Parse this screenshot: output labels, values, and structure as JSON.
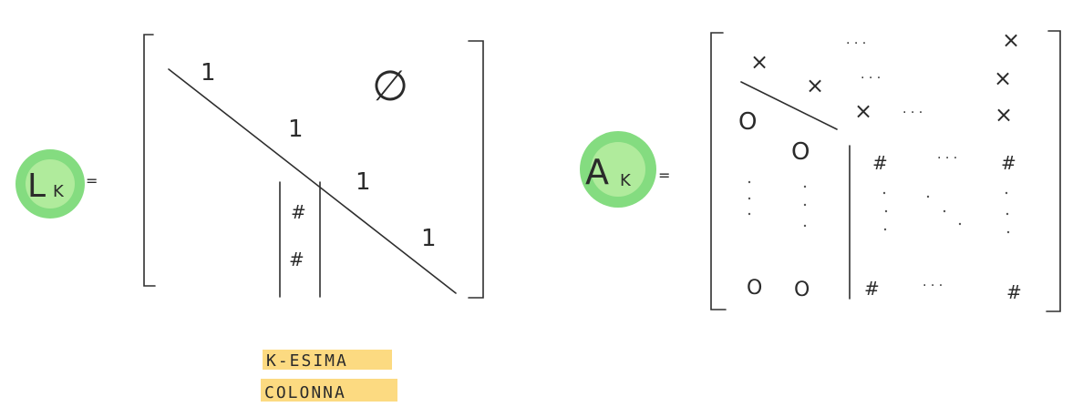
{
  "colors": {
    "highlight_green": "#6fd66a",
    "highlight_yellow": "#fbd46b",
    "pencil": "#2e2e2e"
  },
  "left_matrix": {
    "name_main": "L",
    "name_sub": "K",
    "equals": "=",
    "diag_ones": [
      "1",
      "1",
      "1",
      "1"
    ],
    "upper_zero": "∅",
    "column_entries": [
      "#",
      "#"
    ]
  },
  "column_note": {
    "line1": "K-ESIMA",
    "line2": "COLONNA"
  },
  "right_matrix": {
    "name_main": "A",
    "name_sub": "K",
    "equals": "=",
    "top_x": [
      "×",
      "×",
      "×",
      "×",
      "×",
      "×",
      "×"
    ],
    "left_zeros": [
      "O",
      "O",
      "O",
      "O"
    ],
    "hash_entries": [
      "#",
      "#",
      "#",
      "#"
    ],
    "hdots": "· · ·"
  }
}
